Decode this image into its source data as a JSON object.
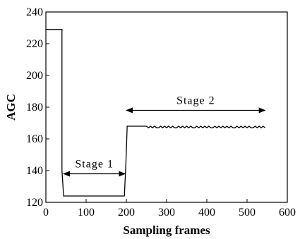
{
  "chart_data": {
    "type": "line",
    "title": "",
    "xlabel": "Sampling frames",
    "ylabel": "AGC",
    "xlim": [
      0,
      600
    ],
    "ylim": [
      120,
      240
    ],
    "xticks": [
      0,
      100,
      200,
      300,
      400,
      500,
      600
    ],
    "yticks": [
      120,
      140,
      160,
      180,
      200,
      220,
      240
    ],
    "xtick_labels": [
      "0",
      "100",
      "200",
      "300",
      "400",
      "500",
      "600"
    ],
    "ytick_labels": [
      "120",
      "140",
      "160",
      "180",
      "200",
      "220",
      "240"
    ],
    "grid": false,
    "series": [
      {
        "color": "#000000",
        "x": [
          0,
          40,
          40,
          44,
          44,
          195,
          195,
          199,
          199,
          202,
          202,
          220,
          240,
          250,
          255,
          260,
          265,
          270,
          275,
          280,
          285,
          290,
          295,
          300,
          305,
          310,
          315,
          320,
          325,
          330,
          335,
          340,
          345,
          350,
          355,
          360,
          365,
          370,
          375,
          380,
          385,
          390,
          395,
          400,
          405,
          410,
          415,
          420,
          425,
          430,
          435,
          440,
          445,
          450,
          455,
          460,
          465,
          470,
          475,
          480,
          485,
          490,
          495,
          500,
          505,
          510,
          515,
          520,
          525,
          530,
          535,
          540,
          545
        ],
        "y": [
          229,
          229,
          140,
          124,
          124,
          124,
          124,
          145,
          145,
          167,
          168,
          168,
          168,
          168,
          167,
          168,
          167,
          168,
          167,
          167,
          168,
          167,
          168,
          167,
          168,
          167,
          168,
          167,
          167,
          168,
          167,
          168,
          167,
          168,
          167,
          168,
          167,
          167,
          168,
          167,
          168,
          167,
          168,
          167,
          168,
          167,
          167,
          168,
          167,
          168,
          167,
          168,
          167,
          168,
          167,
          168,
          167,
          167,
          168,
          167,
          168,
          167,
          168,
          167,
          168,
          167,
          167,
          168,
          167,
          168,
          167,
          168,
          167
        ]
      }
    ],
    "annotations": [
      {
        "text": "Stage 1",
        "x_range": [
          44,
          197
        ],
        "y": 138
      },
      {
        "text": "Stage 2",
        "x_range": [
          200,
          545
        ],
        "y": 178
      }
    ]
  }
}
